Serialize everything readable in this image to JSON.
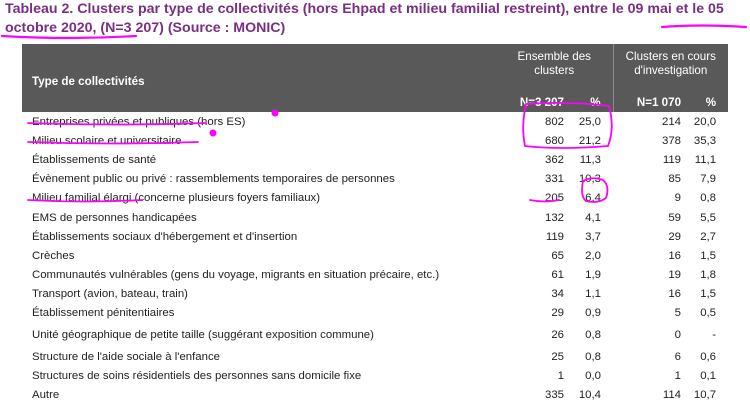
{
  "title": {
    "text": "Tableau 2. Clusters par type de collectivités (hors Ehpad et milieu familial restreint), entre le 09 mai et le 05 octobre 2020, (N=3 207) (Source : MONIC)"
  },
  "header": {
    "type_label": "Type de collectivités",
    "group1": "Ensemble des clusters",
    "group2": "Clusters en cours d'investigation",
    "n1": "N=3 207",
    "pct1": "%",
    "n2": "N=1 070",
    "pct2": "%"
  },
  "rows": [
    {
      "label": "Entreprises privées et publiques (hors ES)",
      "n": "802",
      "pct": "25,0",
      "n2": "214",
      "pct2": "20,0"
    },
    {
      "label": "Milieu scolaire et universitaire",
      "n": "680",
      "pct": "21,2",
      "n2": "378",
      "pct2": "35,3"
    },
    {
      "label": "Établissements de santé",
      "n": "362",
      "pct": "11,3",
      "n2": "119",
      "pct2": "11,1"
    },
    {
      "label": "Évènement public ou privé : rassemblements temporaires de personnes",
      "n": "331",
      "pct": "10,3",
      "n2": "85",
      "pct2": "7,9"
    },
    {
      "label": "Milieu familial élargi (concerne plusieurs foyers familiaux)",
      "n": "205",
      "pct": "6,4",
      "n2": "9",
      "pct2": "0,8"
    },
    {
      "label": "EMS de personnes handicapées",
      "n": "132",
      "pct": "4,1",
      "n2": "59",
      "pct2": "5,5"
    },
    {
      "label": "Établissements sociaux d'hébergement et d'insertion",
      "n": "119",
      "pct": "3,7",
      "n2": "29",
      "pct2": "2,7"
    },
    {
      "label": "Crèches",
      "n": "65",
      "pct": "2,0",
      "n2": "16",
      "pct2": "1,5"
    },
    {
      "label": "Communautés vulnérables (gens du voyage, migrants en situation précaire, etc.)",
      "n": "61",
      "pct": "1,9",
      "n2": "19",
      "pct2": "1,8"
    },
    {
      "label": "Transport (avion, bateau, train)",
      "n": "34",
      "pct": "1,1",
      "n2": "16",
      "pct2": "1,5"
    },
    {
      "label": "Établissement pénitentiaires",
      "n": "29",
      "pct": "0,9",
      "n2": "5",
      "pct2": "0,5"
    },
    {
      "label": "Unité géographique de petite taille (suggérant exposition commune)",
      "n": "26",
      "pct": "0,8",
      "n2": "0",
      "pct2": "-"
    },
    {
      "label": "Structure de l'aide sociale à l'enfance",
      "n": "25",
      "pct": "0,8",
      "n2": "6",
      "pct2": "0,6"
    },
    {
      "label": "Structures de soins résidentiels des personnes sans domicile fixe",
      "n": "1",
      "pct": "0,0",
      "n2": "1",
      "pct2": "0,1"
    },
    {
      "label": "Autre",
      "n": "335",
      "pct": "10,4",
      "n2": "114",
      "pct2": "10,7"
    }
  ],
  "colors": {
    "title": "#7a2e83",
    "header_bg": "#595959",
    "annotation": "#ff00ff"
  }
}
